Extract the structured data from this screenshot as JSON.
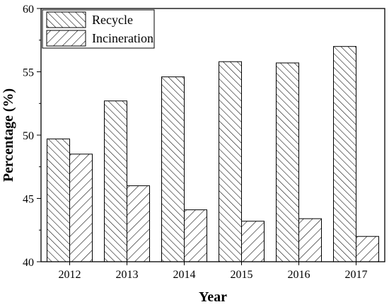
{
  "chart_data": {
    "type": "bar",
    "title": "",
    "xlabel": "Year",
    "ylabel": "Percentage (%)",
    "categories": [
      "2012",
      "2013",
      "2014",
      "2015",
      "2016",
      "2017"
    ],
    "series": [
      {
        "name": "Recycle",
        "values": [
          49.7,
          52.7,
          54.6,
          55.8,
          55.7,
          57.0
        ],
        "pattern": "back-diagonal-hatch"
      },
      {
        "name": "Incineration",
        "values": [
          48.5,
          46.0,
          44.1,
          43.2,
          43.4,
          42.0
        ],
        "pattern": "forward-diagonal-hatch"
      }
    ],
    "ylim": [
      40,
      60
    ],
    "yticks": [
      "40",
      "45",
      "50",
      "55",
      "60"
    ],
    "legend_position": "top-left",
    "grid": false
  }
}
